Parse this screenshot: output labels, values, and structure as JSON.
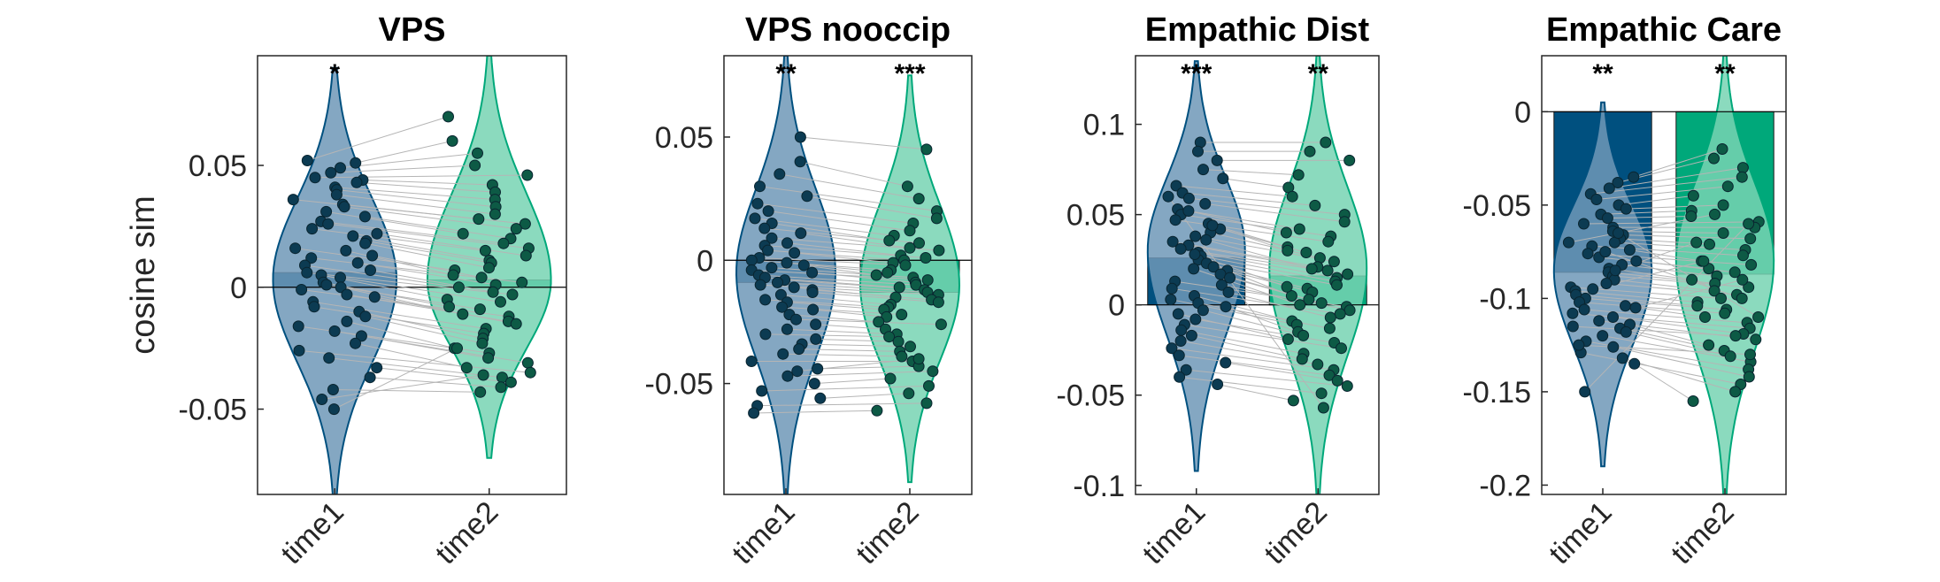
{
  "figure": {
    "ylabel": "cosine sim"
  },
  "colors": {
    "time1": "#00507f",
    "time2": "#00a87a",
    "time1_violin": "#6f98b7",
    "time2_violin": "#77d3b3",
    "dot_fill1": "#0c3b52",
    "dot_fill2": "#0d5a45",
    "dot_edge": "#0a2530",
    "pair_line": "#b5b5b5"
  },
  "chart_data": [
    {
      "type": "violin-bar",
      "title": "VPS",
      "categories": [
        "time1",
        "time2"
      ],
      "ylim": [
        -0.085,
        0.095
      ],
      "yticks": [
        -0.05,
        0,
        0.05
      ],
      "ytick_labels": [
        "-0.05",
        "0",
        "0.05"
      ],
      "means": [
        0.006,
        0.003
      ],
      "significance": [
        "*",
        ""
      ],
      "violin_range": [
        [
          -0.085,
          0.09
        ],
        [
          -0.07,
          0.095
        ]
      ],
      "violin_peak": [
        0.003,
        0.003
      ],
      "series": [
        {
          "values": [
            0.052,
            0.051,
            0.049,
            0.047,
            0.045,
            0.044,
            0.043,
            0.041,
            0.04,
            0.038,
            0.036,
            0.034,
            0.033,
            0.031,
            0.029,
            0.027,
            0.026,
            0.024,
            0.022,
            0.021,
            0.019,
            0.018,
            0.016,
            0.015,
            0.013,
            0.012,
            0.01,
            0.009,
            0.007,
            0.006,
            0.005,
            0.004,
            0.002,
            0.001,
            0.0,
            -0.001,
            -0.003,
            -0.004,
            -0.006,
            -0.008,
            -0.01,
            -0.012,
            -0.014,
            -0.016,
            -0.018,
            -0.02,
            -0.023,
            -0.026,
            -0.029,
            -0.033,
            -0.037,
            -0.042,
            -0.046,
            -0.05
          ]
        },
        {
          "values": [
            0.07,
            0.06,
            0.055,
            0.05,
            0.046,
            0.042,
            0.039,
            0.036,
            0.033,
            0.03,
            0.028,
            0.026,
            0.024,
            0.022,
            0.02,
            0.018,
            0.016,
            0.015,
            0.013,
            0.011,
            0.01,
            0.008,
            0.007,
            0.005,
            0.004,
            0.002,
            0.001,
            0.0,
            -0.002,
            -0.003,
            -0.005,
            -0.006,
            -0.008,
            -0.009,
            -0.011,
            -0.012,
            -0.014,
            -0.015,
            -0.017,
            -0.019,
            -0.021,
            -0.023,
            -0.025,
            -0.027,
            -0.029,
            -0.031,
            -0.033,
            -0.035,
            -0.037,
            -0.039,
            -0.041,
            -0.043,
            -0.036,
            -0.025
          ]
        }
      ]
    },
    {
      "type": "violin-bar",
      "title": "VPS nooccip",
      "categories": [
        "time1",
        "time2"
      ],
      "ylim": [
        -0.095,
        0.083
      ],
      "yticks": [
        -0.05,
        0,
        0.05
      ],
      "ytick_labels": [
        "-0.05",
        "0",
        "0.05"
      ],
      "means": [
        -0.009,
        -0.013
      ],
      "significance": [
        "**",
        "***"
      ],
      "violin_range": [
        [
          -0.095,
          0.083
        ],
        [
          -0.09,
          0.075
        ]
      ],
      "violin_peak": [
        -0.005,
        -0.01
      ],
      "series": [
        {
          "values": [
            0.05,
            0.04,
            0.035,
            0.03,
            0.026,
            0.023,
            0.02,
            0.017,
            0.015,
            0.013,
            0.011,
            0.009,
            0.007,
            0.006,
            0.004,
            0.003,
            0.001,
            0.0,
            -0.001,
            -0.002,
            -0.003,
            -0.004,
            -0.005,
            -0.006,
            -0.007,
            -0.008,
            -0.009,
            -0.01,
            -0.011,
            -0.012,
            -0.013,
            -0.014,
            -0.016,
            -0.017,
            -0.019,
            -0.02,
            -0.022,
            -0.024,
            -0.026,
            -0.028,
            -0.03,
            -0.032,
            -0.034,
            -0.036,
            -0.038,
            -0.041,
            -0.044,
            -0.047,
            -0.05,
            -0.053,
            -0.056,
            -0.059,
            -0.062,
            -0.045
          ]
        },
        {
          "values": [
            0.045,
            0.03,
            0.025,
            0.02,
            0.017,
            0.015,
            0.012,
            0.01,
            0.008,
            0.007,
            0.005,
            0.004,
            0.002,
            0.001,
            0.0,
            -0.001,
            -0.002,
            -0.004,
            -0.005,
            -0.006,
            -0.007,
            -0.008,
            -0.009,
            -0.01,
            -0.011,
            -0.012,
            -0.013,
            -0.014,
            -0.015,
            -0.016,
            -0.017,
            -0.018,
            -0.019,
            -0.02,
            -0.022,
            -0.023,
            -0.025,
            -0.026,
            -0.028,
            -0.03,
            -0.031,
            -0.033,
            -0.035,
            -0.037,
            -0.039,
            -0.041,
            -0.043,
            -0.045,
            -0.048,
            -0.051,
            -0.054,
            -0.058,
            -0.061,
            -0.04
          ]
        }
      ]
    },
    {
      "type": "violin-bar",
      "title": "Empathic Dist",
      "categories": [
        "time1",
        "time2"
      ],
      "ylim": [
        -0.105,
        0.138
      ],
      "yticks": [
        -0.1,
        -0.05,
        0,
        0.05,
        0.1
      ],
      "ytick_labels": [
        "-0.1",
        "-0.05",
        "0",
        "0.05",
        "0.1"
      ],
      "means": [
        0.026,
        0.016
      ],
      "significance": [
        "***",
        "**"
      ],
      "violin_range": [
        [
          -0.092,
          0.135
        ],
        [
          -0.105,
          0.138
        ]
      ],
      "violin_peak": [
        0.03,
        0.02
      ],
      "series": [
        {
          "values": [
            0.09,
            0.085,
            0.08,
            0.075,
            0.07,
            0.066,
            0.062,
            0.059,
            0.056,
            0.053,
            0.05,
            0.047,
            0.045,
            0.042,
            0.04,
            0.038,
            0.035,
            0.033,
            0.031,
            0.029,
            0.027,
            0.025,
            0.023,
            0.021,
            0.019,
            0.017,
            0.015,
            0.013,
            0.011,
            0.009,
            0.007,
            0.005,
            0.003,
            0.001,
            -0.001,
            -0.003,
            -0.005,
            -0.008,
            -0.011,
            -0.014,
            -0.017,
            -0.02,
            -0.024,
            -0.028,
            -0.032,
            -0.036,
            -0.04,
            -0.044,
            0.06,
            0.052,
            0.044,
            0.036,
            0.028,
            0.02
          ]
        },
        {
          "values": [
            0.09,
            0.085,
            0.08,
            0.072,
            0.065,
            0.06,
            0.055,
            0.05,
            0.046,
            0.042,
            0.038,
            0.035,
            0.032,
            0.029,
            0.026,
            0.024,
            0.021,
            0.019,
            0.017,
            0.015,
            0.013,
            0.011,
            0.009,
            0.007,
            0.005,
            0.003,
            0.001,
            -0.001,
            -0.003,
            -0.005,
            -0.007,
            -0.009,
            -0.011,
            -0.013,
            -0.015,
            -0.017,
            -0.019,
            -0.021,
            -0.024,
            -0.027,
            -0.03,
            -0.033,
            -0.036,
            -0.039,
            -0.042,
            -0.045,
            -0.049,
            -0.053,
            -0.057,
            0.04,
            0.03,
            0.02,
            0.01,
            0.0
          ]
        }
      ]
    },
    {
      "type": "violin-bar",
      "title": "Empathic Care",
      "categories": [
        "time1",
        "time2"
      ],
      "ylim": [
        -0.205,
        0.03
      ],
      "yticks": [
        -0.2,
        -0.15,
        -0.1,
        -0.05,
        0
      ],
      "ytick_labels": [
        "-0.2",
        "-0.15",
        "-0.1",
        "-0.05",
        "0"
      ],
      "means": [
        -0.086,
        -0.087
      ],
      "significance": [
        "**",
        "**"
      ],
      "violin_range": [
        [
          -0.19,
          0.005
        ],
        [
          -0.205,
          0.03
        ]
      ],
      "violin_peak": [
        -0.085,
        -0.08
      ],
      "series": [
        {
          "values": [
            -0.035,
            -0.038,
            -0.041,
            -0.044,
            -0.047,
            -0.05,
            -0.052,
            -0.055,
            -0.057,
            -0.06,
            -0.062,
            -0.064,
            -0.066,
            -0.068,
            -0.07,
            -0.072,
            -0.074,
            -0.076,
            -0.078,
            -0.08,
            -0.082,
            -0.084,
            -0.086,
            -0.088,
            -0.09,
            -0.092,
            -0.094,
            -0.096,
            -0.098,
            -0.1,
            -0.102,
            -0.104,
            -0.106,
            -0.108,
            -0.11,
            -0.112,
            -0.114,
            -0.116,
            -0.118,
            -0.12,
            -0.123,
            -0.126,
            -0.129,
            -0.132,
            -0.135,
            -0.15,
            -0.085,
            -0.095,
            -0.105,
            -0.075,
            -0.065,
            -0.115,
            -0.125,
            -0.07
          ]
        },
        {
          "values": [
            -0.02,
            -0.025,
            -0.03,
            -0.035,
            -0.04,
            -0.045,
            -0.05,
            -0.053,
            -0.056,
            -0.059,
            -0.062,
            -0.065,
            -0.068,
            -0.071,
            -0.074,
            -0.077,
            -0.08,
            -0.082,
            -0.084,
            -0.086,
            -0.088,
            -0.09,
            -0.092,
            -0.094,
            -0.096,
            -0.098,
            -0.1,
            -0.102,
            -0.104,
            -0.106,
            -0.108,
            -0.11,
            -0.113,
            -0.116,
            -0.119,
            -0.122,
            -0.125,
            -0.128,
            -0.131,
            -0.134,
            -0.138,
            -0.142,
            -0.146,
            -0.15,
            -0.155,
            -0.06,
            -0.07,
            -0.08,
            -0.09,
            -0.1,
            -0.11,
            -0.12,
            -0.13,
            -0.055
          ]
        }
      ]
    }
  ]
}
